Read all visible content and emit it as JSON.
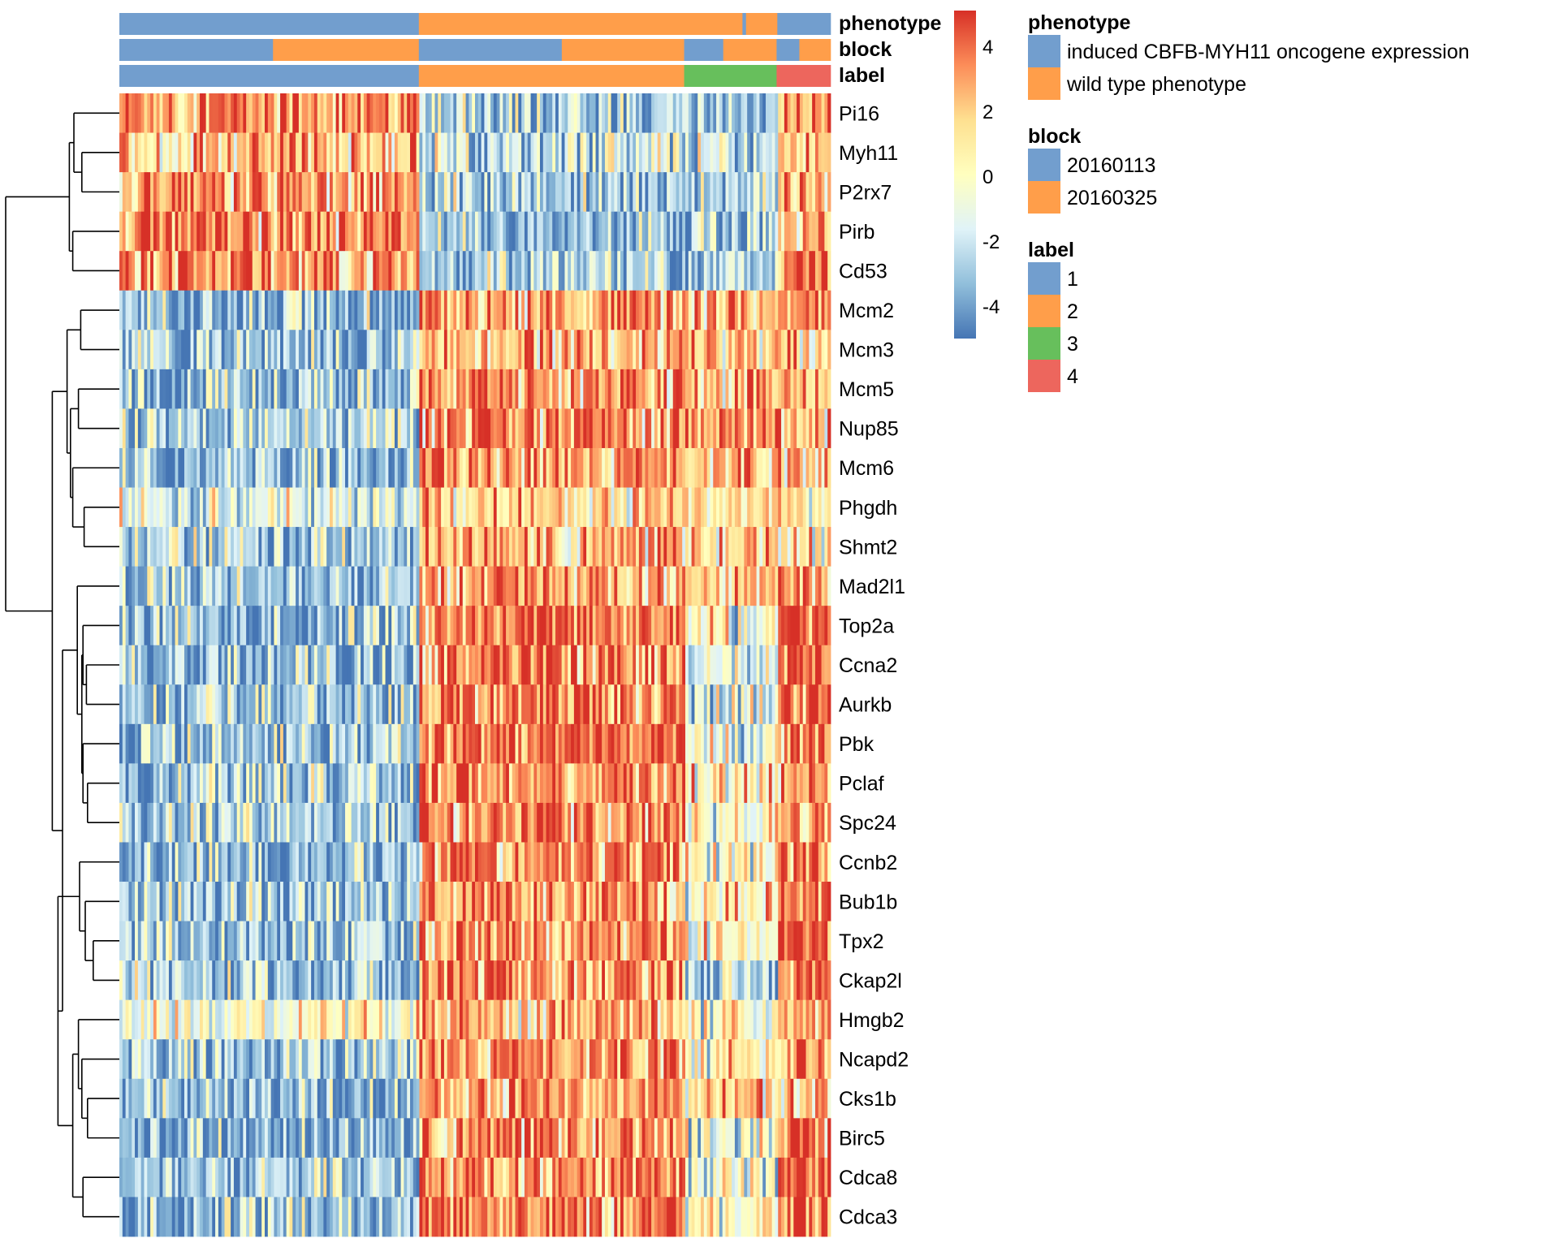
{
  "chart_data": {
    "type": "heatmap",
    "title": "",
    "rows": [
      "Pi16",
      "Myh11",
      "P2rx7",
      "Pirb",
      "Cd53",
      "Mcm2",
      "Mcm3",
      "Mcm5",
      "Nup85",
      "Mcm6",
      "Phgdh",
      "Shmt2",
      "Mad2l1",
      "Top2a",
      "Ccna2",
      "Aurkb",
      "Pbk",
      "Pclaf",
      "Spc24",
      "Ccnb2",
      "Bub1b",
      "Tpx2",
      "Ckap2l",
      "Hmgb2",
      "Ncapd2",
      "Cks1b",
      "Birc5",
      "Cdca8",
      "Cdca3"
    ],
    "n_columns": 230,
    "column_segments": [
      {
        "name": "label 1",
        "fraction": 0.421
      },
      {
        "name": "label 2",
        "fraction": 0.373
      },
      {
        "name": "label 3",
        "fraction": 0.13
      },
      {
        "name": "label 4",
        "fraction": 0.076
      }
    ],
    "row_means_by_label": {
      "Pi16": [
        3.5,
        -3.0,
        -3.0,
        3.0
      ],
      "Myh11": [
        2.5,
        -2.2,
        -2.2,
        2.0
      ],
      "P2rx7": [
        3.3,
        -2.7,
        -2.7,
        2.8
      ],
      "Pirb": [
        3.2,
        -3.3,
        -3.3,
        3.0
      ],
      "Cd53": [
        3.6,
        -2.9,
        -2.9,
        3.5
      ],
      "Mcm2": [
        -3.5,
        3.0,
        2.5,
        2.8
      ],
      "Mcm3": [
        -3.3,
        2.7,
        2.2,
        2.3
      ],
      "Mcm5": [
        -3.6,
        3.2,
        2.6,
        2.8
      ],
      "Nup85": [
        -3.0,
        3.2,
        2.5,
        2.5
      ],
      "Mcm6": [
        -3.4,
        3.1,
        2.6,
        2.3
      ],
      "Phgdh": [
        -1.6,
        1.9,
        1.7,
        1.3
      ],
      "Shmt2": [
        -2.8,
        2.6,
        2.2,
        1.7
      ],
      "Mad2l1": [
        -3.3,
        3.3,
        2.3,
        3.7
      ],
      "Top2a": [
        -3.5,
        3.8,
        -0.5,
        4.3
      ],
      "Ccna2": [
        -3.3,
        3.9,
        -1.8,
        4.0
      ],
      "Aurkb": [
        -3.2,
        3.8,
        -1.8,
        4.2
      ],
      "Pbk": [
        -3.2,
        3.9,
        -0.8,
        3.5
      ],
      "Pclaf": [
        -3.1,
        3.4,
        0.0,
        3.3
      ],
      "Spc24": [
        -2.9,
        3.3,
        -0.3,
        3.3
      ],
      "Ccnb2": [
        -3.5,
        3.4,
        0.5,
        3.9
      ],
      "Bub1b": [
        -3.3,
        3.5,
        0.0,
        4.2
      ],
      "Tpx2": [
        -3.1,
        3.4,
        -0.2,
        4.4
      ],
      "Ckap2l": [
        -2.8,
        3.6,
        -2.3,
        4.3
      ],
      "Hmgb2": [
        -0.6,
        2.1,
        0.4,
        2.6
      ],
      "Ncapd2": [
        -3.0,
        3.4,
        0.8,
        3.2
      ],
      "Cks1b": [
        -3.5,
        3.1,
        2.0,
        3.0
      ],
      "Birc5": [
        -3.6,
        3.5,
        0.2,
        3.8
      ],
      "Cdca8": [
        -3.1,
        3.7,
        0.3,
        4.0
      ],
      "Cdca3": [
        -3.3,
        3.6,
        0.4,
        4.2
      ]
    },
    "annotations": {
      "phenotype": [
        {
          "value": "induced CBFB-MYH11 oncogene expression",
          "fraction": 0.421
        },
        {
          "value": "wild type phenotype",
          "fraction": 0.455
        },
        {
          "value": "induced CBFB-MYH11 oncogene expression",
          "fraction": 0.005
        },
        {
          "value": "wild type phenotype",
          "fraction": 0.044
        },
        {
          "value": "induced CBFB-MYH11 oncogene expression",
          "fraction": 0.075
        }
      ],
      "block": [
        {
          "value": "20160113",
          "fraction": 0.216
        },
        {
          "value": "20160325",
          "fraction": 0.205
        },
        {
          "value": "20160113",
          "fraction": 0.201
        },
        {
          "value": "20160325",
          "fraction": 0.172
        },
        {
          "value": "20160113",
          "fraction": 0.055
        },
        {
          "value": "20160325",
          "fraction": 0.075
        },
        {
          "value": "20160113",
          "fraction": 0.032
        },
        {
          "value": "20160325",
          "fraction": 0.044
        }
      ],
      "label": [
        {
          "value": "1",
          "fraction": 0.421
        },
        {
          "value": "2",
          "fraction": 0.373
        },
        {
          "value": "3",
          "fraction": 0.13
        },
        {
          "value": "4",
          "fraction": 0.076
        }
      ]
    },
    "annotation_track_names": [
      "phenotype",
      "block",
      "label"
    ],
    "row_dendrogram": {
      "h": 1.0,
      "children": [
        {
          "h": 0.44,
          "children": [
            {
              "h": 0.4,
              "children": [
                {
                  "leaf": 0
                },
                {
                  "h": 0.33,
                  "children": [
                    {
                      "leaf": 1
                    },
                    {
                      "leaf": 2
                    }
                  ]
                }
              ]
            },
            {
              "h": 0.41,
              "children": [
                {
                  "leaf": 3
                },
                {
                  "leaf": 4
                }
              ]
            }
          ]
        },
        {
          "h": 0.59,
          "children": [
            {
              "h": 0.46,
              "children": [
                {
                  "h": 0.34,
                  "children": [
                    {
                      "leaf": 5
                    },
                    {
                      "leaf": 6
                    }
                  ]
                },
                {
                  "h": 0.43,
                  "children": [
                    {
                      "h": 0.36,
                      "children": [
                        {
                          "leaf": 7
                        },
                        {
                          "leaf": 8
                        }
                      ]
                    },
                    {
                      "h": 0.41,
                      "children": [
                        {
                          "leaf": 9
                        },
                        {
                          "h": 0.31,
                          "children": [
                            {
                              "leaf": 10
                            },
                            {
                              "leaf": 11
                            }
                          ]
                        }
                      ]
                    }
                  ]
                }
              ]
            },
            {
              "h": 0.5,
              "children": [
                {
                  "h": 0.37,
                  "children": [
                    {
                      "leaf": 12
                    },
                    {
                      "h": 0.33,
                      "children": [
                        {
                          "h": 0.32,
                          "children": [
                            {
                              "leaf": 13
                            },
                            {
                              "h": 0.29,
                              "children": [
                                {
                                  "leaf": 14
                                },
                                {
                                  "leaf": 15
                                }
                              ]
                            }
                          ]
                        },
                        {
                          "h": 0.32,
                          "children": [
                            {
                              "leaf": 16
                            },
                            {
                              "h": 0.28,
                              "children": [
                                {
                                  "leaf": 17
                                },
                                {
                                  "leaf": 18
                                }
                              ]
                            }
                          ]
                        }
                      ]
                    }
                  ]
                },
                {
                  "h": 0.54,
                  "children": [
                    {
                      "h": 0.38,
                      "children": [
                        {
                          "h": 0.35,
                          "children": [
                            {
                              "leaf": 19
                            },
                            {
                              "h": 0.3,
                              "children": [
                                {
                                  "leaf": 20
                                },
                                {
                                  "h": 0.23,
                                  "children": [
                                    {
                                      "leaf": 21
                                    },
                                    {
                                      "leaf": 22
                                    }
                                  ]
                                }
                              ]
                            }
                          ]
                        }
                      ]
                    },
                    {
                      "h": 0.41,
                      "children": [
                        {
                          "h": 0.36,
                          "children": [
                            {
                              "leaf": 23
                            },
                            {
                              "h": 0.33,
                              "children": [
                                {
                                  "leaf": 24
                                },
                                {
                                  "h": 0.28,
                                  "children": [
                                    {
                                      "leaf": 25
                                    },
                                    {
                                      "leaf": 26
                                    }
                                  ]
                                }
                              ]
                            }
                          ]
                        },
                        {
                          "h": 0.32,
                          "children": [
                            {
                              "leaf": 27
                            },
                            {
                              "leaf": 28
                            }
                          ]
                        }
                      ]
                    }
                  ]
                }
              ]
            }
          ]
        }
      ]
    },
    "colorscale": {
      "min": -5,
      "max": 5.1,
      "stops": [
        "#4575b4",
        "#91bfdb",
        "#e0f3f8",
        "#ffffbf",
        "#fee090",
        "#fc8d59",
        "#d73027"
      ],
      "ticks": [
        4,
        2,
        0,
        -2,
        -4
      ]
    },
    "legend": [
      {
        "title": "phenotype",
        "items": [
          {
            "label": "induced CBFB-MYH11 oncogene expression",
            "color": "#729ECE"
          },
          {
            "label": "wild type phenotype",
            "color": "#FF9E4A"
          }
        ]
      },
      {
        "title": "block",
        "items": [
          {
            "label": "20160113",
            "color": "#729ECE"
          },
          {
            "label": "20160325",
            "color": "#FF9E4A"
          }
        ]
      },
      {
        "title": "label",
        "items": [
          {
            "label": "1",
            "color": "#729ECE"
          },
          {
            "label": "2",
            "color": "#FF9E4A"
          },
          {
            "label": "3",
            "color": "#67BF5C"
          },
          {
            "label": "4",
            "color": "#ED665D"
          }
        ]
      }
    ],
    "legend_placement": "right"
  }
}
